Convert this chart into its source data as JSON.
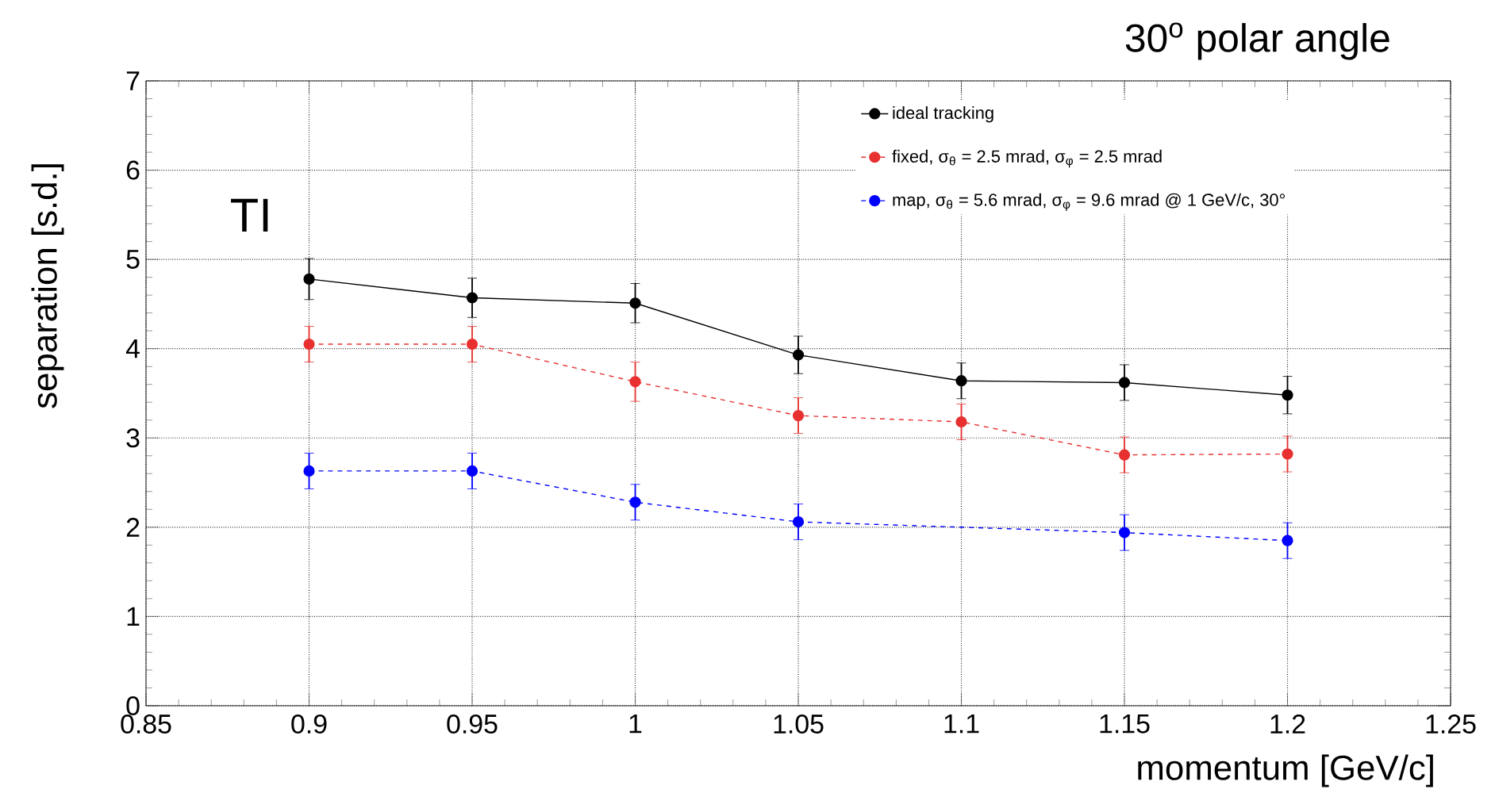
{
  "chart_data": {
    "type": "line",
    "title": "30$^{o}$ polar angle",
    "xlabel": "momentum [GeV/c]",
    "ylabel": "separation [s.d.]",
    "annotations": [
      "TI"
    ],
    "x": [
      0.9,
      0.95,
      1.0,
      1.05,
      1.1,
      1.15,
      1.2
    ],
    "xlim": [
      0.85,
      1.25
    ],
    "xticks": [
      0.85,
      0.9,
      0.95,
      1,
      1.05,
      1.1,
      1.15,
      1.2,
      1.25
    ],
    "ylim": [
      0,
      7
    ],
    "yticks": [
      0,
      1,
      2,
      3,
      4,
      5,
      6,
      7
    ],
    "grid": true,
    "legend": "top right",
    "series": [
      {
        "name": "ideal tracking",
        "color": "#000000",
        "marker": "circle",
        "line_style": "solid",
        "values": [
          4.78,
          4.57,
          4.51,
          3.93,
          3.64,
          3.62,
          3.48
        ],
        "errors": [
          0.23,
          0.22,
          0.22,
          0.21,
          0.2,
          0.2,
          0.21
        ]
      },
      {
        "name": "fixed, σ$_{θ}$ = 2.5 mrad, σ$_{φ}$ = 2.5 mrad",
        "color": "#e83030",
        "marker": "circle",
        "line_style": "dashed",
        "values": [
          4.05,
          4.05,
          3.63,
          3.25,
          3.18,
          2.81,
          2.82
        ],
        "errors": [
          0.2,
          0.2,
          0.22,
          0.2,
          0.2,
          0.2,
          0.2
        ]
      },
      {
        "name": "map, σ$_{θ}$ = 5.6 mrad, σ$_{φ}$ = 9.6 mrad @ 1 GeV/c, 30°",
        "color": "#0000ff",
        "marker": "circle",
        "line_style": "dashed",
        "x": [
          0.9,
          0.95,
          1.0,
          1.05,
          1.15,
          1.2
        ],
        "values": [
          2.63,
          2.63,
          2.28,
          2.06,
          1.94,
          1.85
        ],
        "errors": [
          0.2,
          0.2,
          0.2,
          0.2,
          0.2,
          0.2
        ]
      }
    ]
  }
}
